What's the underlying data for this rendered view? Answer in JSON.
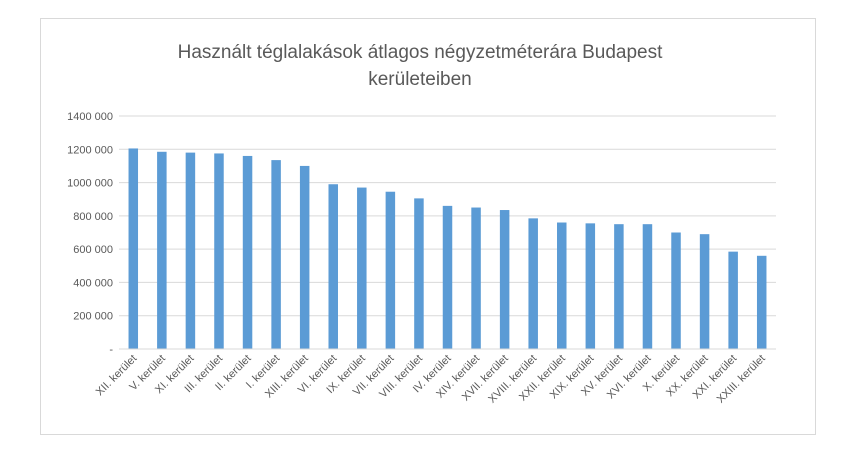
{
  "chart_data": {
    "type": "bar",
    "title_lines": [
      "Használt téglalakások átlagos négyzetméterára Budapest",
      "kerületeiben"
    ],
    "categories": [
      "XII. kerület",
      "V. kerület",
      "XI. kerület",
      "III. kerület",
      "II. kerület",
      "I. kerület",
      "XIII. kerület",
      "VI. kerület",
      "IX. kerület",
      "VII. kerület",
      "VIII. kerület",
      "IV. kerület",
      "XIV. kerület",
      "XVII. kerület",
      "XVIII. kerület",
      "XXII. kerület",
      "XIX. kerület",
      "XV. kerület",
      "XVI. kerület",
      "X. kerület",
      "XX. kerület",
      "XXI. kerület",
      "XXIII. kerület"
    ],
    "values": [
      1205000,
      1185000,
      1180000,
      1175000,
      1160000,
      1135000,
      1100000,
      990000,
      970000,
      945000,
      905000,
      860000,
      850000,
      835000,
      785000,
      760000,
      755000,
      750000,
      750000,
      700000,
      690000,
      585000,
      560000
    ],
    "ylim": [
      0,
      1400000
    ],
    "yticks": [
      {
        "value": 0,
        "label": "-"
      },
      {
        "value": 200000,
        "label": "200 000"
      },
      {
        "value": 400000,
        "label": "400 000"
      },
      {
        "value": 600000,
        "label": "600 000"
      },
      {
        "value": 800000,
        "label": "800 000"
      },
      {
        "value": 1000000,
        "label": "1000 000"
      },
      {
        "value": 1200000,
        "label": "1200 000"
      },
      {
        "value": 1400000,
        "label": "1400 000"
      }
    ],
    "grid": true,
    "legend": "none",
    "colors": {
      "bar": "#5b9bd5",
      "grid": "#d9d9d9",
      "text": "#595959"
    }
  }
}
